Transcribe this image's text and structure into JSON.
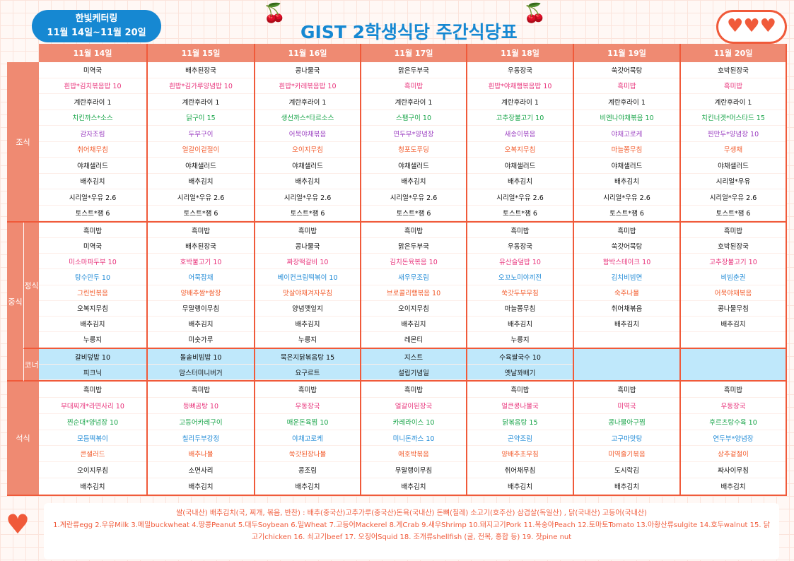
{
  "badge": {
    "line1": "한빛케터링",
    "line2": "11월 14일~11월 20일"
  },
  "title": "GIST 2학생식당 주간식당표",
  "days": [
    "11월 14일",
    "11월 15일",
    "11월 16일",
    "11월 17일",
    "11월 18일",
    "11월 19일",
    "11월 20일"
  ],
  "labels": {
    "breakfast": "조식",
    "lunch": "중식",
    "lunch_main": "정식",
    "lunch_corner": "코너",
    "dinner": "석식"
  },
  "colors": {
    "black": "#111111",
    "pink": "#e8327a",
    "green": "#17a448",
    "purple": "#9b3fc1",
    "orange": "#f25a2a",
    "blue": "#1f8ad6",
    "accent": "#f05a3a",
    "header": "#ef8a72",
    "corner_bg": "#bfe8fb"
  },
  "row_colors": {
    "breakfast": [
      "black",
      "pink",
      "black",
      "green",
      "purple",
      "orange",
      "black",
      "black",
      "black",
      "black"
    ],
    "lunch": [
      "black",
      "black",
      "pink",
      "blue",
      "orange",
      "black",
      "black",
      "black"
    ],
    "dinner": [
      "black",
      "pink",
      "green",
      "blue",
      "orange",
      "black",
      "black"
    ]
  },
  "breakfast": [
    [
      "미역국",
      "흰밥*김치볶음밥 10",
      "계란후라이 1",
      "치킨까스*소스",
      "감자조림",
      "취어채무침",
      "야채샐러드",
      "배추김치",
      "시리얼*우유 2.6",
      "토스트*잼 6"
    ],
    [
      "배추된장국",
      "흰밥*김가루양념밥 10",
      "계란후라이 1",
      "닭구이 15",
      "두부구이",
      "얼갈이겉절이",
      "야채샐러드",
      "배추김치",
      "시리얼*우유 2.6",
      "토스트*잼 6"
    ],
    [
      "콩나물국",
      "흰밥*카레볶음밥 10",
      "계란후라이 1",
      "생선까스*타르소스",
      "어묵야채볶음",
      "오이지무침",
      "야채샐러드",
      "배추김치",
      "시리얼*우유 2.6",
      "토스트*잼 6"
    ],
    [
      "맑은두부국",
      "흑미밥",
      "계란후라이 1",
      "스팸구이 10",
      "연두부*양념장",
      "청포도푸딩",
      "야채샐러드",
      "배추김치",
      "시리얼*우유 2.6",
      "토스트*잼 6"
    ],
    [
      "우동장국",
      "흰밥*야채햄볶음밥 10",
      "계란후라이 1",
      "고추장불고기 10",
      "새송이볶음",
      "오복지무침",
      "야채샐러드",
      "배추김치",
      "시리얼*우유 2.6",
      "토스트*잼 6"
    ],
    [
      "쑥갓어묵탕",
      "흑미밥",
      "계란후라이 1",
      "비엔나야채볶음 10",
      "야채고로케",
      "마늘쫑무침",
      "야채샐러드",
      "배추김치",
      "시리얼*우유 2.6",
      "토스트*잼 6"
    ],
    [
      "호박된장국",
      "흑미밥",
      "계란후라이 1",
      "치킨너겟*머스타드 15",
      "찐만두*양념장 10",
      "무생채",
      "야채샐러드",
      "시리얼*우유",
      "시리얼*우유 2.6",
      "토스트*잼 6"
    ]
  ],
  "lunch": [
    [
      "흑미밥",
      "미역국",
      "미소마파두부 10",
      "탕수만두 10",
      "그린빈볶음",
      "오복지무침",
      "배추김치",
      "누룽지"
    ],
    [
      "흑미밥",
      "배추된장국",
      "호박불고기 10",
      "어묵잡채",
      "양배추쌈*쌈장",
      "무말랭이무침",
      "배추김치",
      "미숫가루"
    ],
    [
      "흑미밥",
      "콩나물국",
      "짜장떡갈비 10",
      "베이컨크림떡볶이 10",
      "맛살야채겨자무침",
      "양념깻잎지",
      "배추김치",
      "누룽지"
    ],
    [
      "흑미밥",
      "맑은두부국",
      "김치돈육볶음 10",
      "새우무조림",
      "브로콜리햄볶음 10",
      "오이지무침",
      "배추김치",
      "레몬티"
    ],
    [
      "흑미밥",
      "우동장국",
      "유산슬덮밥 10",
      "오꼬노미야끼전",
      "쑥갓두부무침",
      "마늘쫑무침",
      "배추김치",
      "누룽지"
    ],
    [
      "흑미밥",
      "쑥갓어묵탕",
      "함박스테이크 10",
      "김치비빔면",
      "숙주나물",
      "취어채볶음",
      "배추김치",
      ""
    ],
    [
      "흑미밥",
      "호박된장국",
      "고추장불고기 10",
      "비빔춘권",
      "어묵야채볶음",
      "콩나물무침",
      "배추김치",
      ""
    ]
  ],
  "corner": [
    [
      "갈비덮밥 10",
      "피크닉"
    ],
    [
      "돌솥비빔밥 10",
      "맘스터미니버거"
    ],
    [
      "묵은지닭볶음탕 15",
      "요구르트"
    ],
    [
      "지스트",
      "설립기념일"
    ],
    [
      "수육쌀국수 10",
      "옛날꽈배기"
    ]
  ],
  "dinner": [
    [
      "흑미밥",
      "부대찌개*라면사리 10",
      "찐순대*양념장 10",
      "모듬떡볶이",
      "콘샐러드",
      "오이지무침",
      "배추김치"
    ],
    [
      "흑미밥",
      "등뼈곰탕 10",
      "고등어카레구이",
      "칠리두부강정",
      "배추나물",
      "소면사리",
      "배추김치"
    ],
    [
      "흑미밥",
      "우동장국",
      "매운돈육찜 10",
      "야채고로케",
      "쑥갓된장나물",
      "콩조림",
      "배추김치"
    ],
    [
      "흑미밥",
      "얼갈이된장국",
      "카레라이스 10",
      "미니돈까스 10",
      "애호박볶음",
      "무말랭이무침",
      "배추김치"
    ],
    [
      "흑미밥",
      "얼큰콩나물국",
      "닭볶음탕 15",
      "곤약조림",
      "양배추초무침",
      "취어채무침",
      "배추김치"
    ],
    [
      "흑미밥",
      "미역국",
      "콩나물아구찜",
      "고구마맛탕",
      "미역줄기볶음",
      "도시락김",
      "배추김치"
    ],
    [
      "흑미밥",
      "우동장국",
      "후르츠탕수육 10",
      "연두부*양념장",
      "상추겉절이",
      "짜사이무침",
      "배추김치"
    ]
  ],
  "footer": {
    "origin": "쌀(국내산) 배추김치(국, 찌개, 볶음, 반찬) : 배추(중국산)고추가루(중국산)돈육(국내산) 돈뼈(칠레) 소고기(호주산) 삼겹살(독일산) , 닭(국내산) 고등어(국내산)",
    "allergens": "1.계란류egg 2.우유Milk 3.메밀buckwheat 4.땅콩Peanut 5.대두Soybean 6.밀Wheat 7.고등어Mackerel 8.게Crab 9.새우Shrimp 10.돼지고기Pork 11.복숭아Peach 12.토마토Tomato 13.아황산류sulgite 14.호두walnut 15. 닭고기chicken 16. 쇠고기beef 17. 오징어Squid 18. 조개류shellfish (굴, 전복, 홍합 등) 19. 잣pine nut"
  }
}
